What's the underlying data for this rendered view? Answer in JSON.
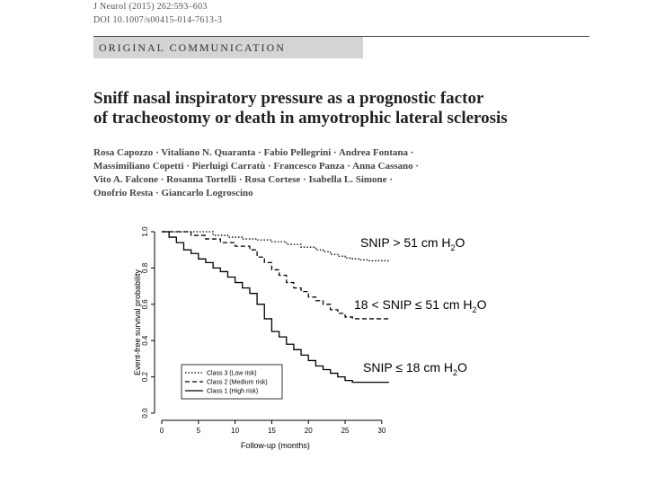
{
  "header": {
    "citation_line1": "J Neurol (2015) 262:593–603",
    "citation_line2": "DOI 10.1007/s00415-014-7613-3",
    "banner": "ORIGINAL COMMUNICATION"
  },
  "article": {
    "title_line1": "Sniff nasal inspiratory pressure as a prognostic factor",
    "title_line2": "of tracheostomy or death in amyotrophic lateral sclerosis",
    "authors_lines": [
      "Rosa Capozzo · Vitaliano N. Quaranta · Fabio Pellegrini · Andrea Fontana ·",
      "Massimiliano Copetti · Pierluigi Carratù · Francesco Panza · Anna Cassano ·",
      "Vito A. Falcone · Rosanna Tortelli · Rosa Cortese · Isabella L. Simone ·",
      "Onofrio Resta · Giancarlo Logroscino"
    ]
  },
  "callouts": {
    "high_pre": "SNIP > 51 cm H",
    "mid_pre": "18 < SNIP ≤ 51 cm H",
    "low_pre": "SNIP ≤ 18 cm H",
    "sub": "2",
    "post": "O"
  },
  "chart_data": {
    "type": "line",
    "title": "",
    "xlabel": "Follow-up (months)",
    "ylabel": "Event-free survival probability",
    "xlim": [
      0,
      31
    ],
    "ylim": [
      0,
      1.0
    ],
    "xticks": [
      "0",
      "5",
      "10",
      "15",
      "20",
      "25",
      "30"
    ],
    "yticks": [
      "0.0",
      "0.2",
      "0.4",
      "0.6",
      "0.8",
      "1.0"
    ],
    "grid": false,
    "legend_position": "bottom-left",
    "colors": {
      "axis": "#000000",
      "lines": "#000000"
    },
    "series": [
      {
        "name": "Class 3 (Low risk)",
        "style": "dotted",
        "points": [
          [
            0,
            1.0
          ],
          [
            5,
            1.0
          ],
          [
            7,
            0.98
          ],
          [
            9,
            0.97
          ],
          [
            11,
            0.96
          ],
          [
            13,
            0.955
          ],
          [
            15,
            0.945
          ],
          [
            17,
            0.93
          ],
          [
            19,
            0.915
          ],
          [
            21,
            0.9
          ],
          [
            22,
            0.89
          ],
          [
            23,
            0.875
          ],
          [
            24,
            0.865
          ],
          [
            25,
            0.855
          ],
          [
            26,
            0.85
          ],
          [
            27,
            0.845
          ],
          [
            28,
            0.84
          ],
          [
            31,
            0.84
          ]
        ]
      },
      {
        "name": "Class 2 (Medium risk)",
        "style": "dashed",
        "points": [
          [
            0,
            1.0
          ],
          [
            4,
            0.98
          ],
          [
            6,
            0.96
          ],
          [
            8,
            0.94
          ],
          [
            10,
            0.92
          ],
          [
            12,
            0.9
          ],
          [
            13,
            0.86
          ],
          [
            14,
            0.83
          ],
          [
            15,
            0.79
          ],
          [
            16,
            0.76
          ],
          [
            17,
            0.72
          ],
          [
            18,
            0.69
          ],
          [
            19,
            0.67
          ],
          [
            20,
            0.64
          ],
          [
            21,
            0.62
          ],
          [
            22,
            0.6
          ],
          [
            23,
            0.57
          ],
          [
            24,
            0.55
          ],
          [
            25,
            0.53
          ],
          [
            26,
            0.52
          ],
          [
            31,
            0.52
          ]
        ]
      },
      {
        "name": "Class 1 (High risk)",
        "style": "solid",
        "points": [
          [
            0,
            1.0
          ],
          [
            1,
            0.97
          ],
          [
            2,
            0.94
          ],
          [
            3,
            0.9
          ],
          [
            4,
            0.88
          ],
          [
            5,
            0.85
          ],
          [
            6,
            0.83
          ],
          [
            7,
            0.8
          ],
          [
            8,
            0.78
          ],
          [
            9,
            0.75
          ],
          [
            10,
            0.72
          ],
          [
            11,
            0.69
          ],
          [
            12,
            0.66
          ],
          [
            13,
            0.6
          ],
          [
            14,
            0.52
          ],
          [
            15,
            0.45
          ],
          [
            16,
            0.42
          ],
          [
            17,
            0.38
          ],
          [
            18,
            0.35
          ],
          [
            19,
            0.32
          ],
          [
            20,
            0.29
          ],
          [
            21,
            0.26
          ],
          [
            22,
            0.24
          ],
          [
            23,
            0.22
          ],
          [
            24,
            0.2
          ],
          [
            25,
            0.18
          ],
          [
            26,
            0.17
          ],
          [
            31,
            0.17
          ]
        ]
      }
    ]
  }
}
